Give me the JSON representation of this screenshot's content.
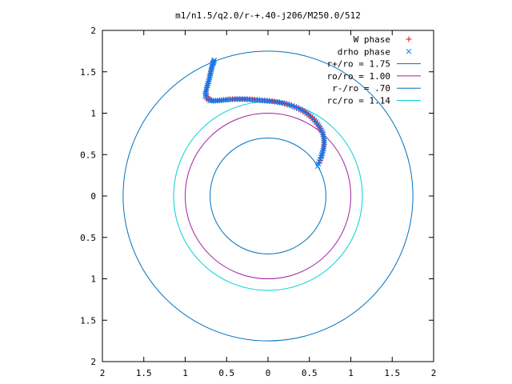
{
  "chart_data": {
    "type": "scatter",
    "title": "m1/n1.5/q2.0/r-+.40-j206/M250.0/512",
    "xlabel": "",
    "ylabel": "",
    "xlim": [
      -2,
      2
    ],
    "ylim": [
      -2,
      2
    ],
    "x_ticks": [
      -2,
      -1.5,
      -1,
      -0.5,
      0,
      0.5,
      1,
      1.5,
      2
    ],
    "y_ticks": [
      -2,
      -1.5,
      -1,
      -0.5,
      0,
      0.5,
      1,
      1.5,
      2
    ],
    "x_tick_labels": [
      "2",
      "1.5",
      "1",
      "0.5",
      "0",
      "0.5",
      "1",
      "1.5",
      "2"
    ],
    "y_tick_labels": [
      "2",
      "1.5",
      "1",
      "0.5",
      "0",
      "0.5",
      "1",
      "1.5",
      "2"
    ],
    "grid": false,
    "legend_position": "top-right",
    "series": [
      {
        "name": "W phase",
        "kind": "points",
        "marker": "plus",
        "color": "#ff0000",
        "points": [
          [
            0.62,
            0.4
          ],
          [
            0.66,
            0.52
          ],
          [
            0.68,
            0.62
          ],
          [
            0.67,
            0.72
          ],
          [
            0.63,
            0.82
          ],
          [
            0.56,
            0.92
          ],
          [
            0.47,
            1.0
          ],
          [
            0.37,
            1.06
          ],
          [
            0.26,
            1.1
          ],
          [
            0.14,
            1.13
          ],
          [
            0.02,
            1.15
          ],
          [
            -0.1,
            1.16
          ],
          [
            -0.22,
            1.17
          ],
          [
            -0.34,
            1.17
          ],
          [
            -0.46,
            1.17
          ],
          [
            -0.56,
            1.16
          ],
          [
            -0.66,
            1.15
          ],
          [
            -0.74,
            1.18
          ],
          [
            -0.75,
            1.26
          ],
          [
            -0.72,
            1.36
          ],
          [
            -0.7,
            1.46
          ],
          [
            -0.68,
            1.55
          ],
          [
            -0.66,
            1.63
          ]
        ]
      },
      {
        "name": "drho phase",
        "kind": "points",
        "marker": "cross",
        "color": "#0080ff",
        "points": [
          [
            0.6,
            0.36
          ],
          [
            0.64,
            0.47
          ],
          [
            0.67,
            0.57
          ],
          [
            0.68,
            0.67
          ],
          [
            0.66,
            0.77
          ],
          [
            0.6,
            0.87
          ],
          [
            0.52,
            0.96
          ],
          [
            0.42,
            1.03
          ],
          [
            0.32,
            1.08
          ],
          [
            0.2,
            1.12
          ],
          [
            0.08,
            1.14
          ],
          [
            -0.04,
            1.15
          ],
          [
            -0.16,
            1.16
          ],
          [
            -0.28,
            1.17
          ],
          [
            -0.4,
            1.17
          ],
          [
            -0.51,
            1.16
          ],
          [
            -0.61,
            1.15
          ],
          [
            -0.7,
            1.15
          ],
          [
            -0.76,
            1.21
          ],
          [
            -0.74,
            1.31
          ],
          [
            -0.71,
            1.41
          ],
          [
            -0.69,
            1.5
          ],
          [
            -0.67,
            1.59
          ],
          [
            -0.65,
            1.64
          ]
        ]
      },
      {
        "name": "r+/ro = 1.75",
        "kind": "circle",
        "radius": 1.75,
        "color": "#0072bd"
      },
      {
        "name": "ro/ro = 1.00",
        "kind": "circle",
        "radius": 1.0,
        "color": "#a020a0"
      },
      {
        "name": "r-/ro = .70",
        "kind": "circle",
        "radius": 0.7,
        "color": "#0072bd"
      },
      {
        "name": "rc/ro = 1.14",
        "kind": "circle",
        "radius": 1.14,
        "color": "#00d0d0"
      }
    ]
  }
}
